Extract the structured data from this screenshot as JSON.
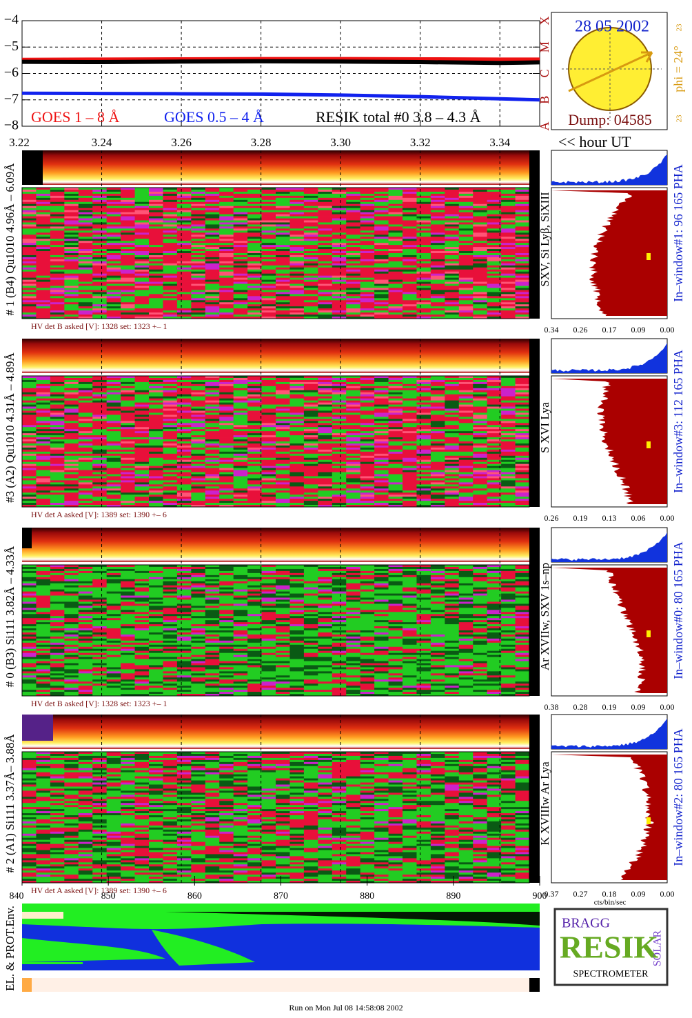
{
  "chart_data": {
    "type": "line",
    "x": [
      3.22,
      3.24,
      3.26,
      3.28,
      3.3,
      3.32,
      3.34,
      3.35
    ],
    "series": [
      {
        "name": "GOES 1 – 8 Å",
        "color": "#ee1111",
        "values": [
          -5.47,
          -5.46,
          -5.45,
          -5.44,
          -5.44,
          -5.45,
          -5.46,
          -5.46
        ]
      },
      {
        "name": "GOES 0.5 – 4 Å",
        "color": "#1122ee",
        "values": [
          -6.75,
          -6.76,
          -6.77,
          -6.78,
          -6.82,
          -6.88,
          -6.96,
          -7.0
        ]
      },
      {
        "name": "RESIK total #0  3.8 – 4.3 Å",
        "color": "#000000",
        "values": [
          -5.56,
          -5.57,
          -5.55,
          -5.54,
          -5.55,
          -5.57,
          -5.6,
          -5.58
        ]
      }
    ],
    "xlim": [
      3.22,
      3.35
    ],
    "xticks": [
      3.22,
      3.24,
      3.26,
      3.28,
      {
        "value": 3.3,
        "label": "3.30"
      },
      3.32,
      3.34
    ],
    "ylim": [
      -8,
      -4
    ],
    "yticks": [
      {
        "value": -8,
        "label": "−8"
      },
      {
        "value": -7,
        "label": "−7"
      },
      {
        "value": -6,
        "label": "−6"
      },
      {
        "value": -5,
        "label": "−5"
      },
      {
        "value": -4,
        "label": "−4"
      }
    ],
    "y2lim": [
      -8,
      -4
    ],
    "y2ticks": [
      {
        "value": -8,
        "label": "A"
      },
      {
        "value": -7,
        "label": "B"
      },
      {
        "value": -6,
        "label": "C"
      },
      {
        "value": -5,
        "label": "M"
      },
      {
        "value": -4,
        "label": "X"
      }
    ],
    "x_label": "<< hour UT",
    "grid": true
  },
  "sun": {
    "date": "28 05 2002",
    "phi": "phi = 24°",
    "top": "23",
    "bottom": "23",
    "dump": "Dump: 04585"
  },
  "panels": [
    {
      "label": "# 1 (B4) Qu1010 4.96Å – 6.09Å",
      "hv": "HV det B asked [V]:  1328 set:  1323  +–     1",
      "lines": "SXV, Si Lyβ, SiXIII",
      "window": "In–window#1:   96 165  PHA",
      "hist_ticks": [
        "0.34",
        "0.26",
        "0.17",
        "0.09",
        "0.00"
      ]
    },
    {
      "label": "#3 (A2) Qu1010  4.31Å – 4.89Å",
      "hv": "HV det A asked [V]:  1389 set:  1390  +–     6",
      "lines": "S XVI Lya",
      "window": "In–window#3:   112 165  PHA",
      "hist_ticks": [
        "0.26",
        "0.19",
        "0.13",
        "0.06",
        "0.00"
      ]
    },
    {
      "label": "# 0 (B3) Si111  3.82Å – 4.33Å",
      "hv": "HV det B asked [V]:  1328 set:  1323  +–     1",
      "lines": "Ar XVIIw, SXV 1s–np",
      "window": "In–window#0:   80 165  PHA",
      "hist_ticks": [
        "0.38",
        "0.28",
        "0.19",
        "0.09",
        "0.00"
      ]
    },
    {
      "label": "# 2 (A1) Si111  3.37Å– 3.88Å",
      "hv": "HV det A asked [V]:  1389 set:  1390  +–     6",
      "lines": "K XVIIIw  Ar Lya",
      "window": "In–window#2:   80 165  PHA",
      "hist_ticks": [
        "0.37",
        "0.27",
        "0.18",
        "0.09",
        "0.00"
      ]
    }
  ],
  "hist_unit": "cts/bin/sec",
  "bottom_axis": [
    "840",
    "850",
    "860",
    "870",
    "880",
    "890",
    "900"
  ],
  "env_label": "EL. & PROT.Env.",
  "logo": {
    "bragg": "BRAGG",
    "resik": "RESIK",
    "solar": "SOLAR",
    "spectrometer": "SPECTROMETER"
  },
  "footer": "Run on Mon Jul 08 14:58:08 2002"
}
